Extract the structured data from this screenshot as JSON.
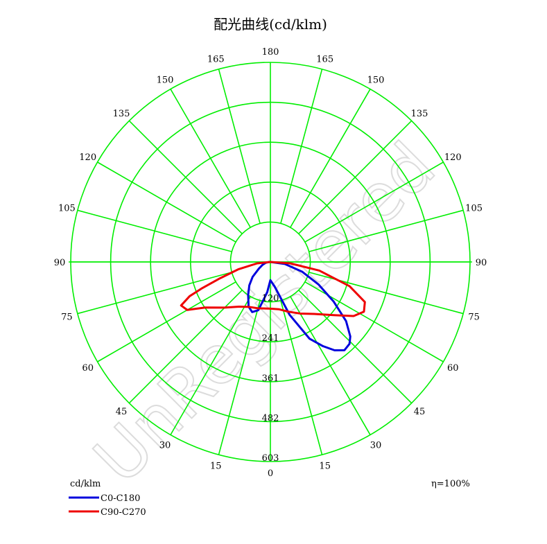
{
  "chart_data": {
    "type": "polar",
    "title": "配光曲线(cd/klm)",
    "unit_label": "cd/klm",
    "efficiency_label": "η=100%",
    "watermark": "UnRegistered",
    "radial_max": 603,
    "radial_tick_labels": [
      "120",
      "241",
      "361",
      "482",
      "603"
    ],
    "angle_labels_left": [
      "0",
      "15",
      "30",
      "45",
      "60",
      "75",
      "90",
      "105",
      "120",
      "135",
      "150",
      "165",
      "180"
    ],
    "angle_labels_right": [
      "15",
      "30",
      "45",
      "60",
      "75",
      "90",
      "105",
      "120",
      "135",
      "150",
      "165"
    ],
    "grid_color": "#00ee00",
    "series": [
      {
        "name": "C0-C180",
        "color": "#0000dd",
        "points": [
          {
            "theta": -90,
            "r": 0
          },
          {
            "theta": -87,
            "r": 5
          },
          {
            "theta": -80,
            "r": 14
          },
          {
            "theta": -70,
            "r": 25
          },
          {
            "theta": -60,
            "r": 40
          },
          {
            "theta": -50,
            "r": 70
          },
          {
            "theta": -42,
            "r": 95
          },
          {
            "theta": -34,
            "r": 120
          },
          {
            "theta": -26,
            "r": 150
          },
          {
            "theta": -20,
            "r": 161
          },
          {
            "theta": -14,
            "r": 150
          },
          {
            "theta": -6,
            "r": 92
          },
          {
            "theta": 0,
            "r": 55
          },
          {
            "theta": 10,
            "r": 76
          },
          {
            "theta": 20,
            "r": 170
          },
          {
            "theta": 27,
            "r": 260
          },
          {
            "theta": 32,
            "r": 300
          },
          {
            "theta": 36,
            "r": 330
          },
          {
            "theta": 40,
            "r": 348
          },
          {
            "theta": 44,
            "r": 344
          },
          {
            "theta": 47,
            "r": 330
          },
          {
            "theta": 52,
            "r": 290
          },
          {
            "theta": 58,
            "r": 225
          },
          {
            "theta": 65,
            "r": 160
          },
          {
            "theta": 73,
            "r": 100
          },
          {
            "theta": 82,
            "r": 44
          },
          {
            "theta": 90,
            "r": 0
          }
        ]
      },
      {
        "name": "C90-C270",
        "color": "#ee0000",
        "points": [
          {
            "theta": -90,
            "r": 0
          },
          {
            "theta": -84,
            "r": 40
          },
          {
            "theta": -77,
            "r": 100
          },
          {
            "theta": -72,
            "r": 160
          },
          {
            "theta": -69,
            "r": 220
          },
          {
            "theta": -67,
            "r": 265
          },
          {
            "theta": -64,
            "r": 300
          },
          {
            "theta": -60,
            "r": 290
          },
          {
            "theta": -55,
            "r": 240
          },
          {
            "theta": -45,
            "r": 195
          },
          {
            "theta": -35,
            "r": 165
          },
          {
            "theta": -25,
            "r": 150
          },
          {
            "theta": -15,
            "r": 145
          },
          {
            "theta": 0,
            "r": 141
          },
          {
            "theta": 10,
            "r": 145
          },
          {
            "theta": 20,
            "r": 160
          },
          {
            "theta": 30,
            "r": 180
          },
          {
            "theta": 40,
            "r": 205
          },
          {
            "theta": 50,
            "r": 250
          },
          {
            "theta": 57,
            "r": 300
          },
          {
            "theta": 62,
            "r": 320
          },
          {
            "theta": 67,
            "r": 310
          },
          {
            "theta": 73,
            "r": 250
          },
          {
            "theta": 80,
            "r": 150
          },
          {
            "theta": 86,
            "r": 60
          },
          {
            "theta": 90,
            "r": 0
          }
        ]
      }
    ]
  }
}
